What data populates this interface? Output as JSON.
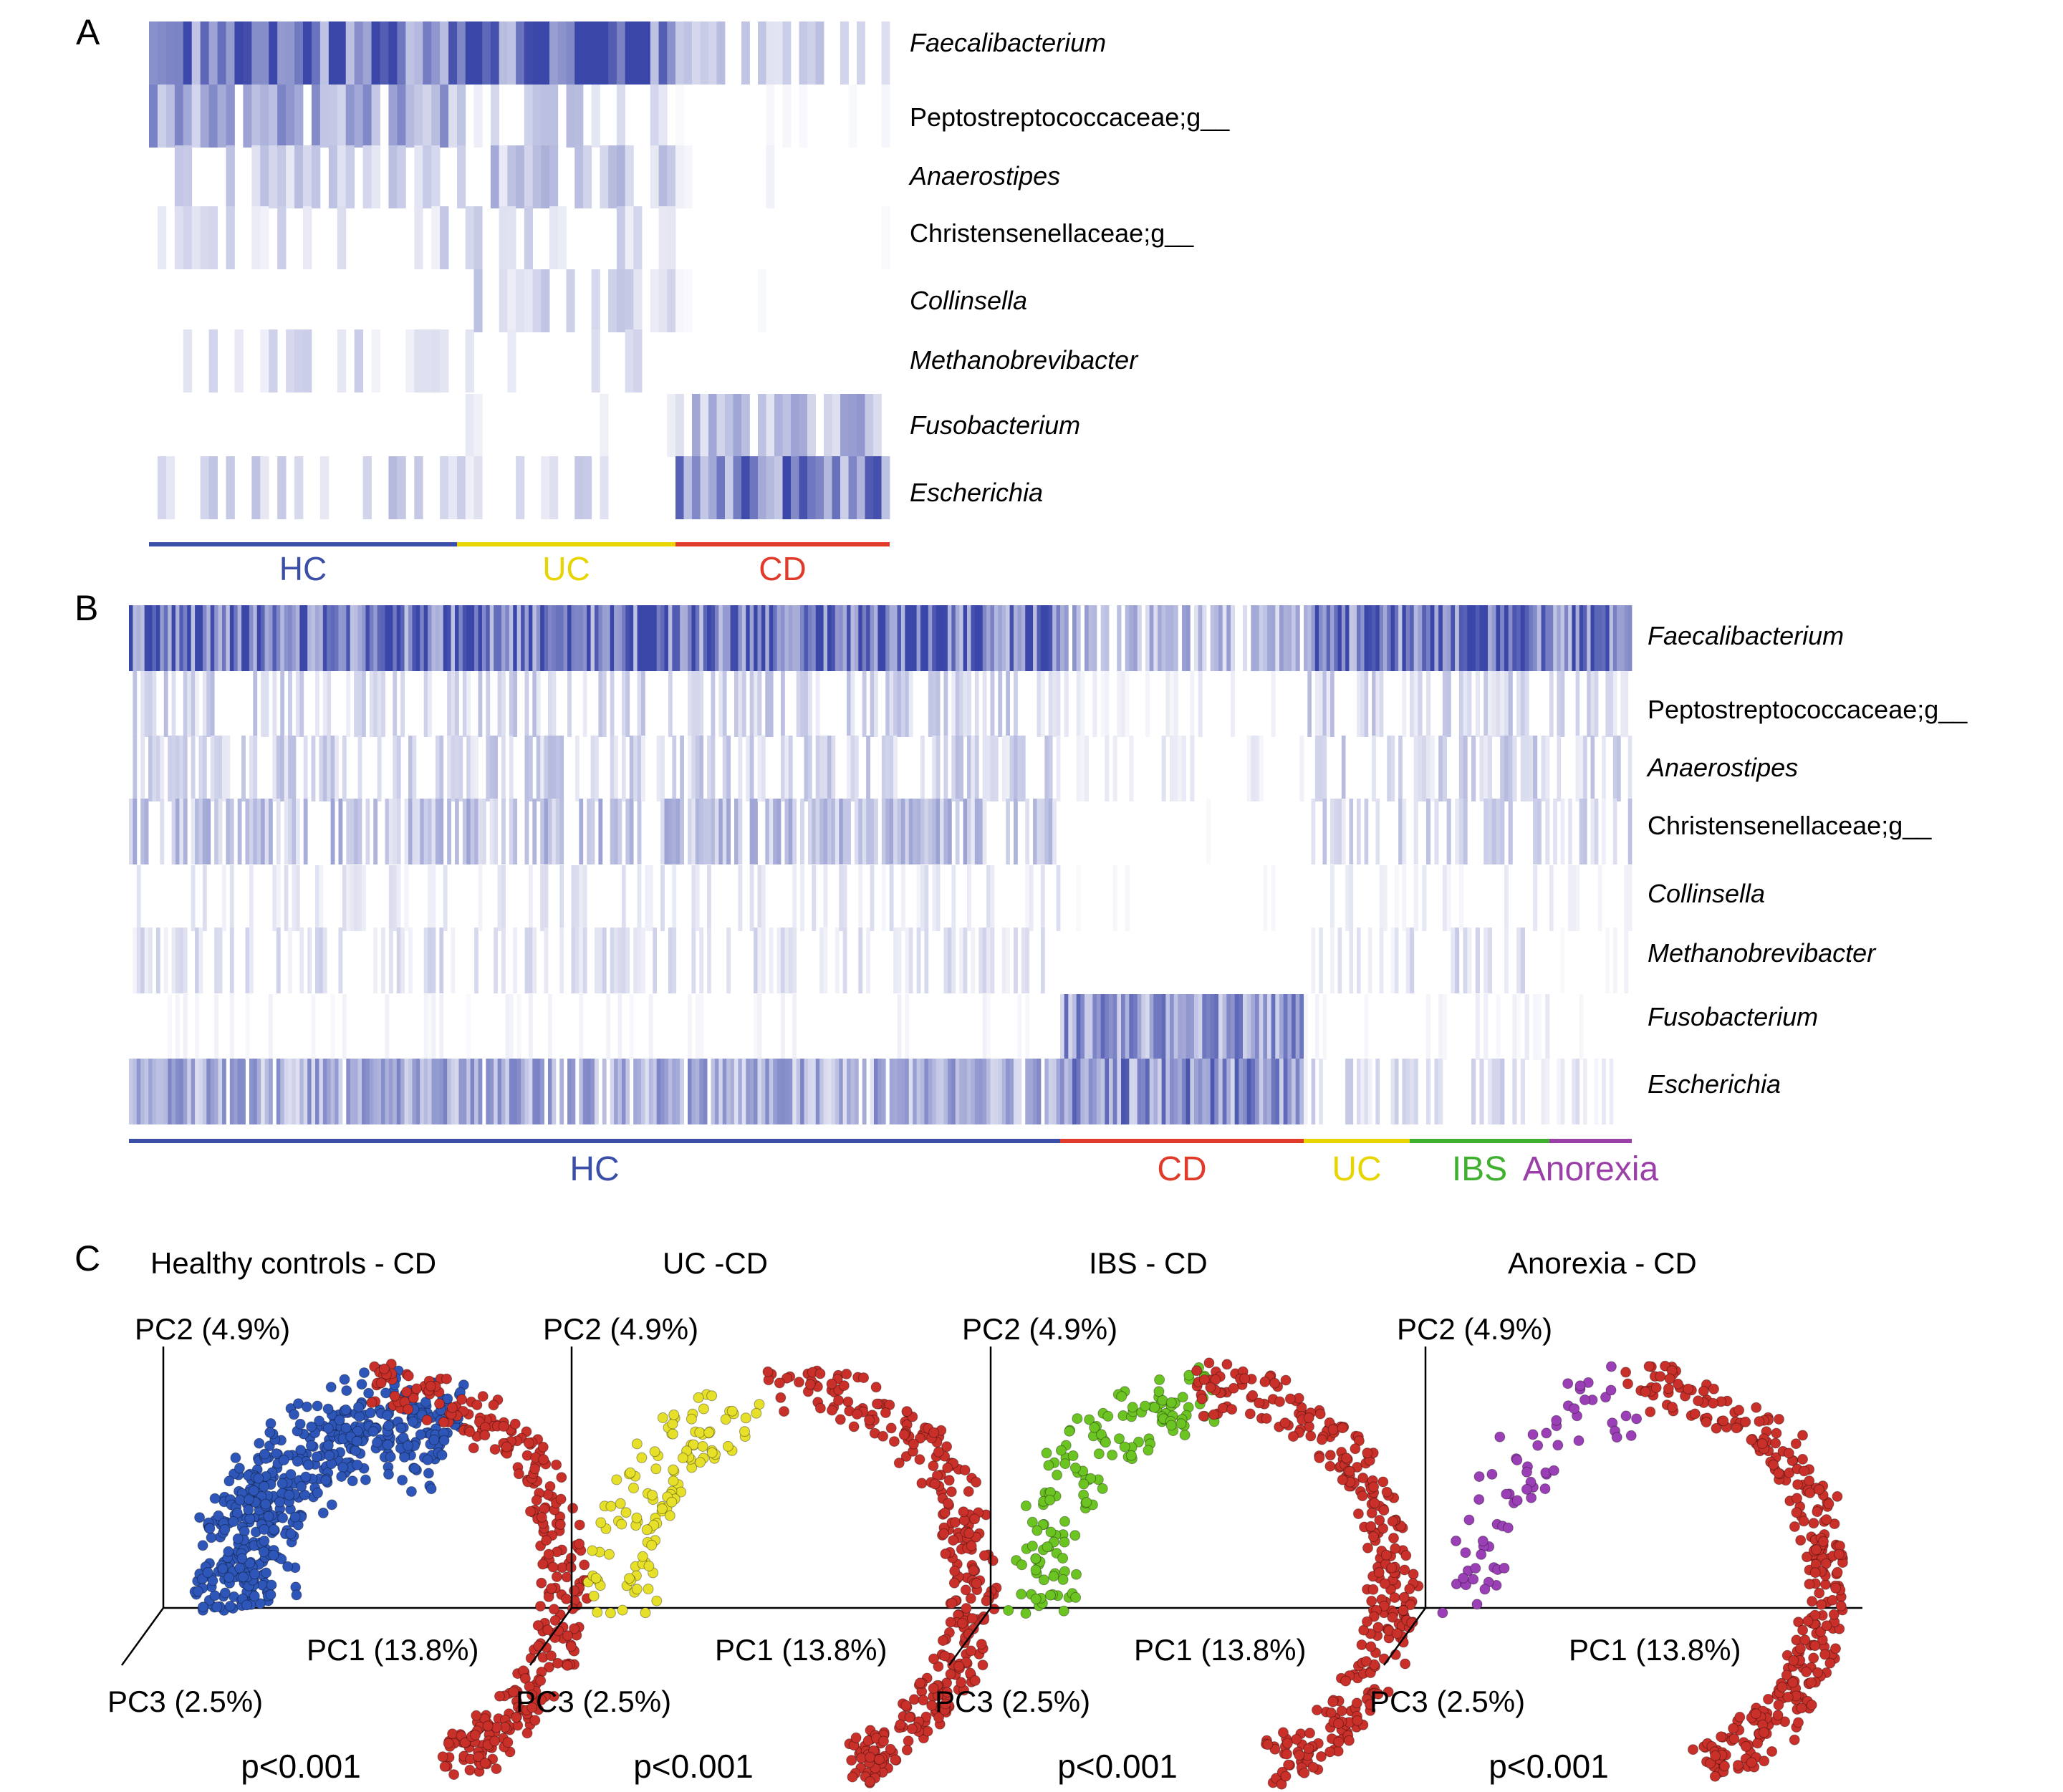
{
  "panel_labels": {
    "a": "A",
    "b": "B",
    "c": "C"
  },
  "colors": {
    "heat": "#3a46a8",
    "HC": "#3b4ea8",
    "UC": "#e8d400",
    "CD": "#e03a2a",
    "IBS": "#3fb030",
    "Anorexia": "#9b3fa8",
    "dot_HC": "#2d56b8",
    "dot_UC": "#e6e02a",
    "dot_IBS": "#6cc423",
    "dot_Anorexia": "#9a3fb6",
    "dot_CD": "#c9302a"
  },
  "taxa": [
    {
      "name": "Faecalibacterium",
      "italic": true
    },
    {
      "name": "Peptostreptococcaceae;g__",
      "italic": false
    },
    {
      "name": "Anaerostipes",
      "italic": true
    },
    {
      "name": "Christensenellaceae;g__",
      "italic": false
    },
    {
      "name": "Collinsella",
      "italic": true
    },
    {
      "name": "Methanobrevibacter",
      "italic": true
    },
    {
      "name": "Fusobacterium",
      "italic": true
    },
    {
      "name": "Escherichia",
      "italic": true
    }
  ],
  "chart_data": [
    {
      "type": "heatmap",
      "panel": "A",
      "rows": [
        "Faecalibacterium",
        "Peptostreptococcaceae;g__",
        "Anaerostipes",
        "Christensenellaceae;g__",
        "Collinsella",
        "Methanobrevibacter",
        "Fusobacterium",
        "Escherichia"
      ],
      "groups": [
        {
          "name": "HC",
          "n_samples": 36
        },
        {
          "name": "UC",
          "n_samples": 26
        },
        {
          "name": "CD",
          "n_samples": 26
        }
      ],
      "mean_relative_abundance_index": {
        "HC": [
          0.75,
          0.4,
          0.22,
          0.18,
          0.0,
          0.16,
          0.0,
          0.22
        ],
        "UC": [
          0.8,
          0.22,
          0.28,
          0.18,
          0.2,
          0.14,
          0.08,
          0.18
        ],
        "CD": [
          0.25,
          0.03,
          0.05,
          0.02,
          0.03,
          0.01,
          0.35,
          0.6
        ]
      }
    },
    {
      "type": "heatmap",
      "panel": "B",
      "rows": [
        "Faecalibacterium",
        "Peptostreptococcaceae;g__",
        "Anaerostipes",
        "Christensenellaceae;g__",
        "Collinsella",
        "Methanobrevibacter",
        "Fusobacterium",
        "Escherichia"
      ],
      "groups": [
        {
          "name": "HC",
          "n_samples": 240
        },
        {
          "name": "CD",
          "n_samples": 60
        },
        {
          "name": "UC",
          "n_samples": 28
        },
        {
          "name": "IBS",
          "n_samples": 34
        },
        {
          "name": "Anorexia",
          "n_samples": 22
        }
      ],
      "mean_relative_abundance_index": {
        "HC": [
          0.72,
          0.22,
          0.22,
          0.3,
          0.12,
          0.16,
          0.05,
          0.4
        ],
        "CD": [
          0.35,
          0.08,
          0.1,
          0.02,
          0.03,
          0.01,
          0.5,
          0.55
        ],
        "UC": [
          0.7,
          0.22,
          0.22,
          0.2,
          0.08,
          0.12,
          0.04,
          0.18
        ],
        "IBS": [
          0.72,
          0.22,
          0.22,
          0.2,
          0.08,
          0.18,
          0.08,
          0.18
        ],
        "Anorexia": [
          0.7,
          0.2,
          0.2,
          0.2,
          0.08,
          0.05,
          0.03,
          0.12
        ]
      }
    },
    {
      "type": "scatter",
      "panel": "C",
      "axes": {
        "x": "PC1 (13.8%)",
        "y": "PC2 (4.9%)",
        "z": "PC3 (2.5%)"
      },
      "plots": [
        {
          "title": "Healthy controls - CD",
          "group": "HC",
          "vs": "CD",
          "p": "p<0.001"
        },
        {
          "title": "UC -CD",
          "group": "UC",
          "vs": "CD",
          "p": "p<0.001"
        },
        {
          "title": "IBS - CD",
          "group": "IBS",
          "vs": "CD",
          "p": "p<0.001"
        },
        {
          "title": "Anorexia - CD",
          "group": "Anorexia",
          "vs": "CD",
          "p": "p<0.001"
        }
      ]
    }
  ]
}
